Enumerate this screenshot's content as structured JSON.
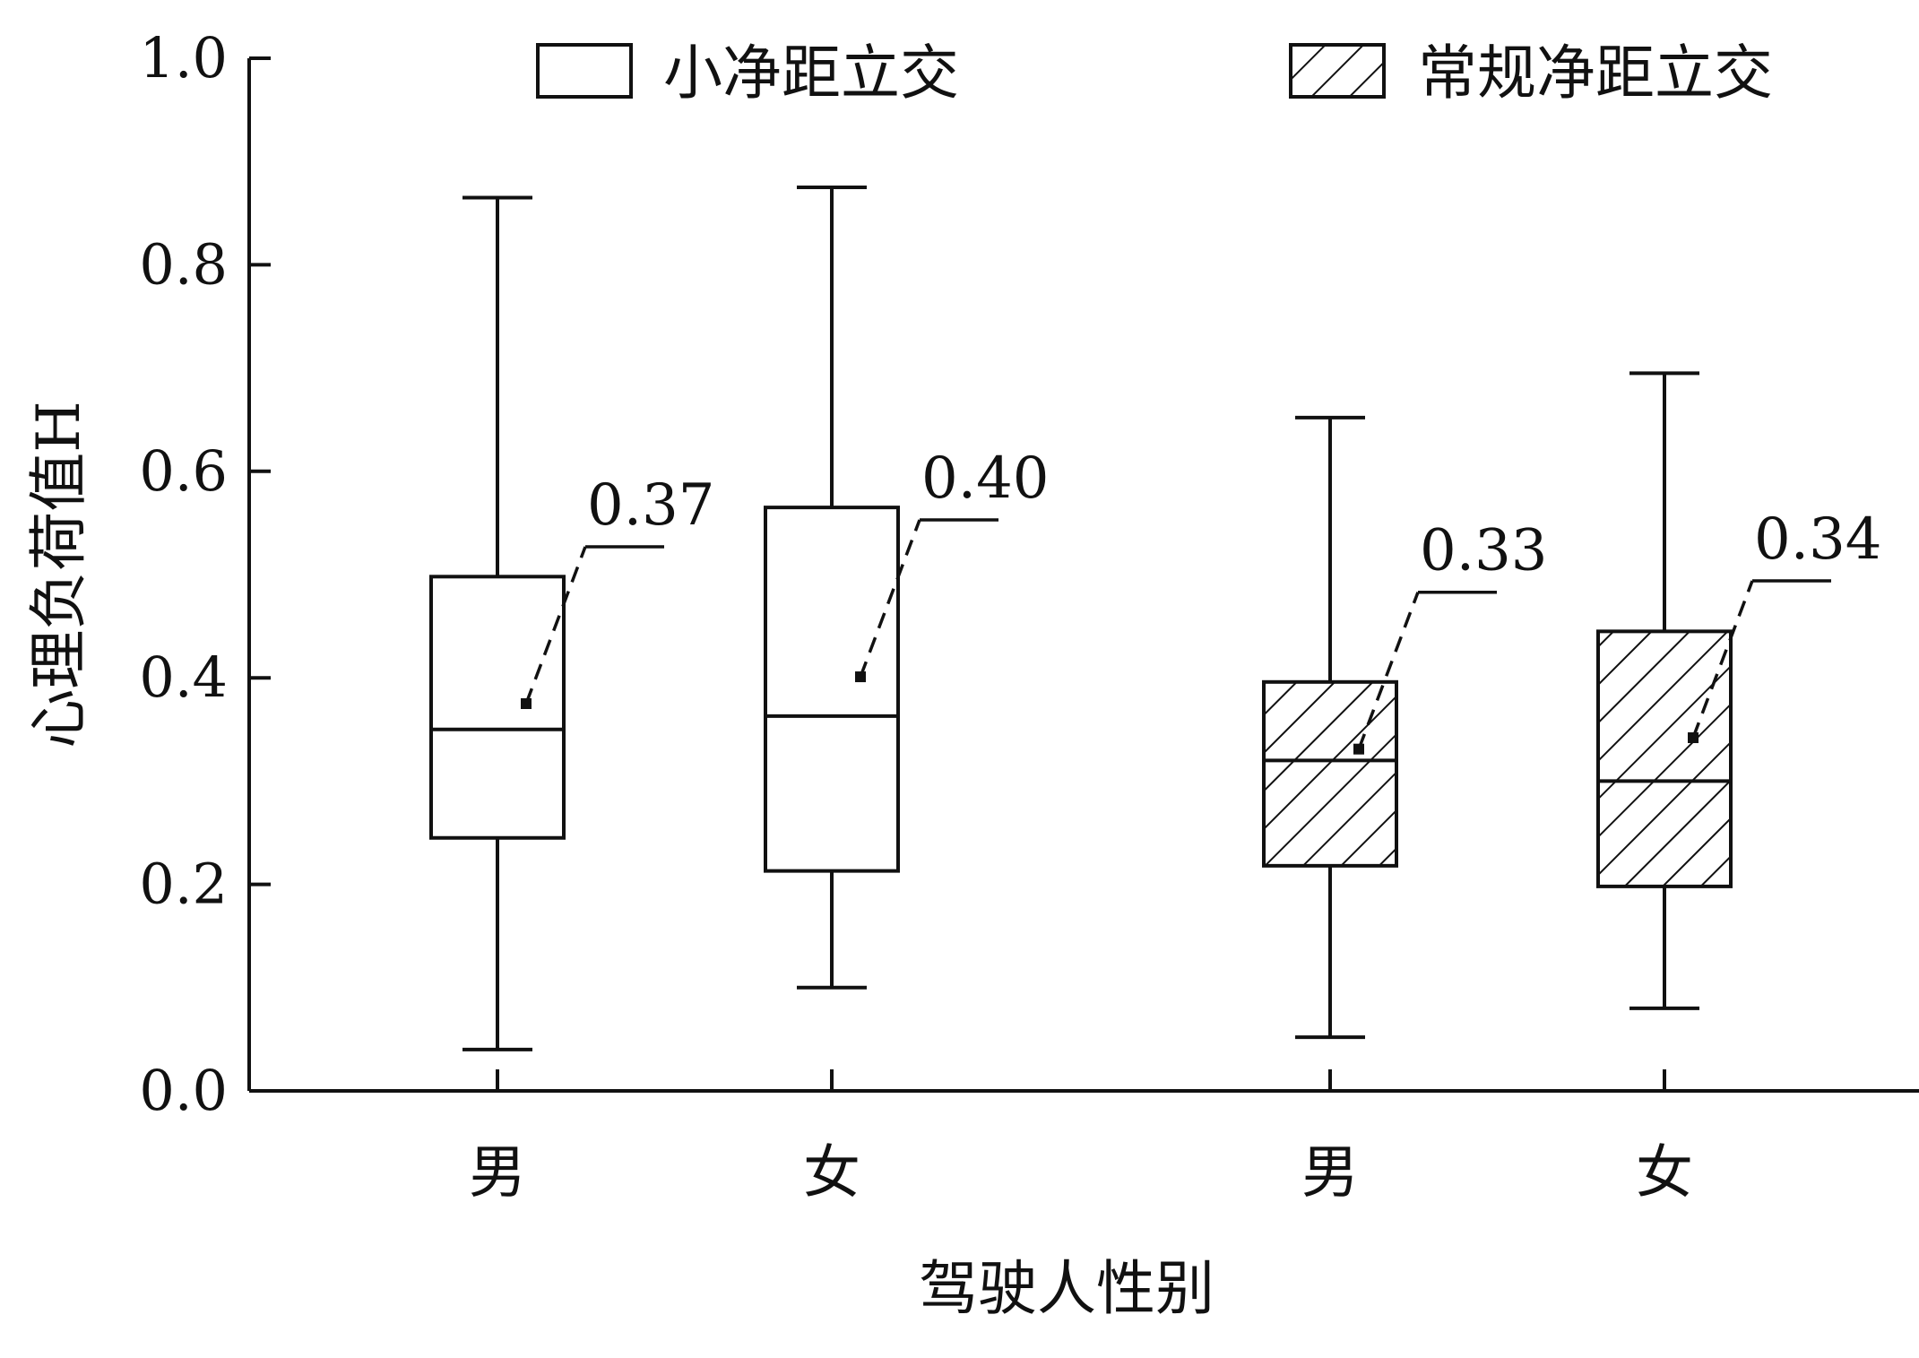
{
  "chart_data": {
    "type": "box",
    "xlabel": "驾驶人性别",
    "ylabel": "心理负荷值H",
    "ylim": [
      0.0,
      1.0
    ],
    "yticks": [
      "0.0",
      "0.2",
      "0.4",
      "0.6",
      "0.8",
      "1.0"
    ],
    "ytick_values": [
      0.0,
      0.2,
      0.4,
      0.6,
      0.8,
      1.0
    ],
    "grid": false,
    "legend_position": "top",
    "categories": [
      "男",
      "女",
      "男",
      "女"
    ],
    "series": [
      {
        "name": "小净距立交",
        "pattern": "none",
        "boxes": [
          {
            "category": "男",
            "min": 0.04,
            "q1": 0.245,
            "median": 0.35,
            "q3": 0.498,
            "max": 0.865,
            "mean": 0.375,
            "mean_label": "0.37"
          },
          {
            "category": "女",
            "min": 0.1,
            "q1": 0.213,
            "median": 0.363,
            "q3": 0.565,
            "max": 0.875,
            "mean": 0.401,
            "mean_label": "0.40"
          }
        ]
      },
      {
        "name": "常规净距立交",
        "pattern": "diagonal-hatch",
        "boxes": [
          {
            "category": "男",
            "min": 0.052,
            "q1": 0.218,
            "median": 0.32,
            "q3": 0.396,
            "max": 0.652,
            "mean": 0.331,
            "mean_label": "0.33"
          },
          {
            "category": "女",
            "min": 0.08,
            "q1": 0.198,
            "median": 0.3,
            "q3": 0.445,
            "max": 0.695,
            "mean": 0.342,
            "mean_label": "0.34"
          }
        ]
      }
    ]
  }
}
